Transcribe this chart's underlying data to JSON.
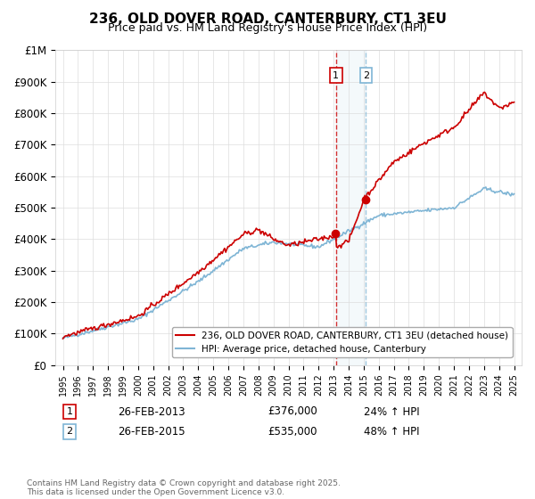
{
  "title": "236, OLD DOVER ROAD, CANTERBURY, CT1 3EU",
  "subtitle": "Price paid vs. HM Land Registry's House Price Index (HPI)",
  "ylabel_ticks": [
    "£0",
    "£100K",
    "£200K",
    "£300K",
    "£400K",
    "£500K",
    "£600K",
    "£700K",
    "£800K",
    "£900K",
    "£1M"
  ],
  "ytick_values": [
    0,
    100000,
    200000,
    300000,
    400000,
    500000,
    600000,
    700000,
    800000,
    900000,
    1000000
  ],
  "ylim": [
    0,
    1000000
  ],
  "xlim_start": 1995,
  "xlim_end": 2025.5,
  "legend_line1": "236, OLD DOVER ROAD, CANTERBURY, CT1 3EU (detached house)",
  "legend_line2": "HPI: Average price, detached house, Canterbury",
  "transaction1_date": "26-FEB-2013",
  "transaction1_price": "£376,000",
  "transaction1_hpi": "24% ↑ HPI",
  "transaction1_year": 2013.15,
  "transaction1_value": 376000,
  "transaction2_date": "26-FEB-2015",
  "transaction2_price": "£535,000",
  "transaction2_hpi": "48% ↑ HPI",
  "transaction2_year": 2015.15,
  "transaction2_value": 535000,
  "line_color_red": "#cc0000",
  "line_color_blue": "#7fb5d5",
  "vline_color": "#cc0000",
  "vline_color2": "#7fb5d5",
  "footnote": "Contains HM Land Registry data © Crown copyright and database right 2025.\nThis data is licensed under the Open Government Licence v3.0.",
  "background_color": "#ffffff",
  "grid_color": "#dddddd"
}
